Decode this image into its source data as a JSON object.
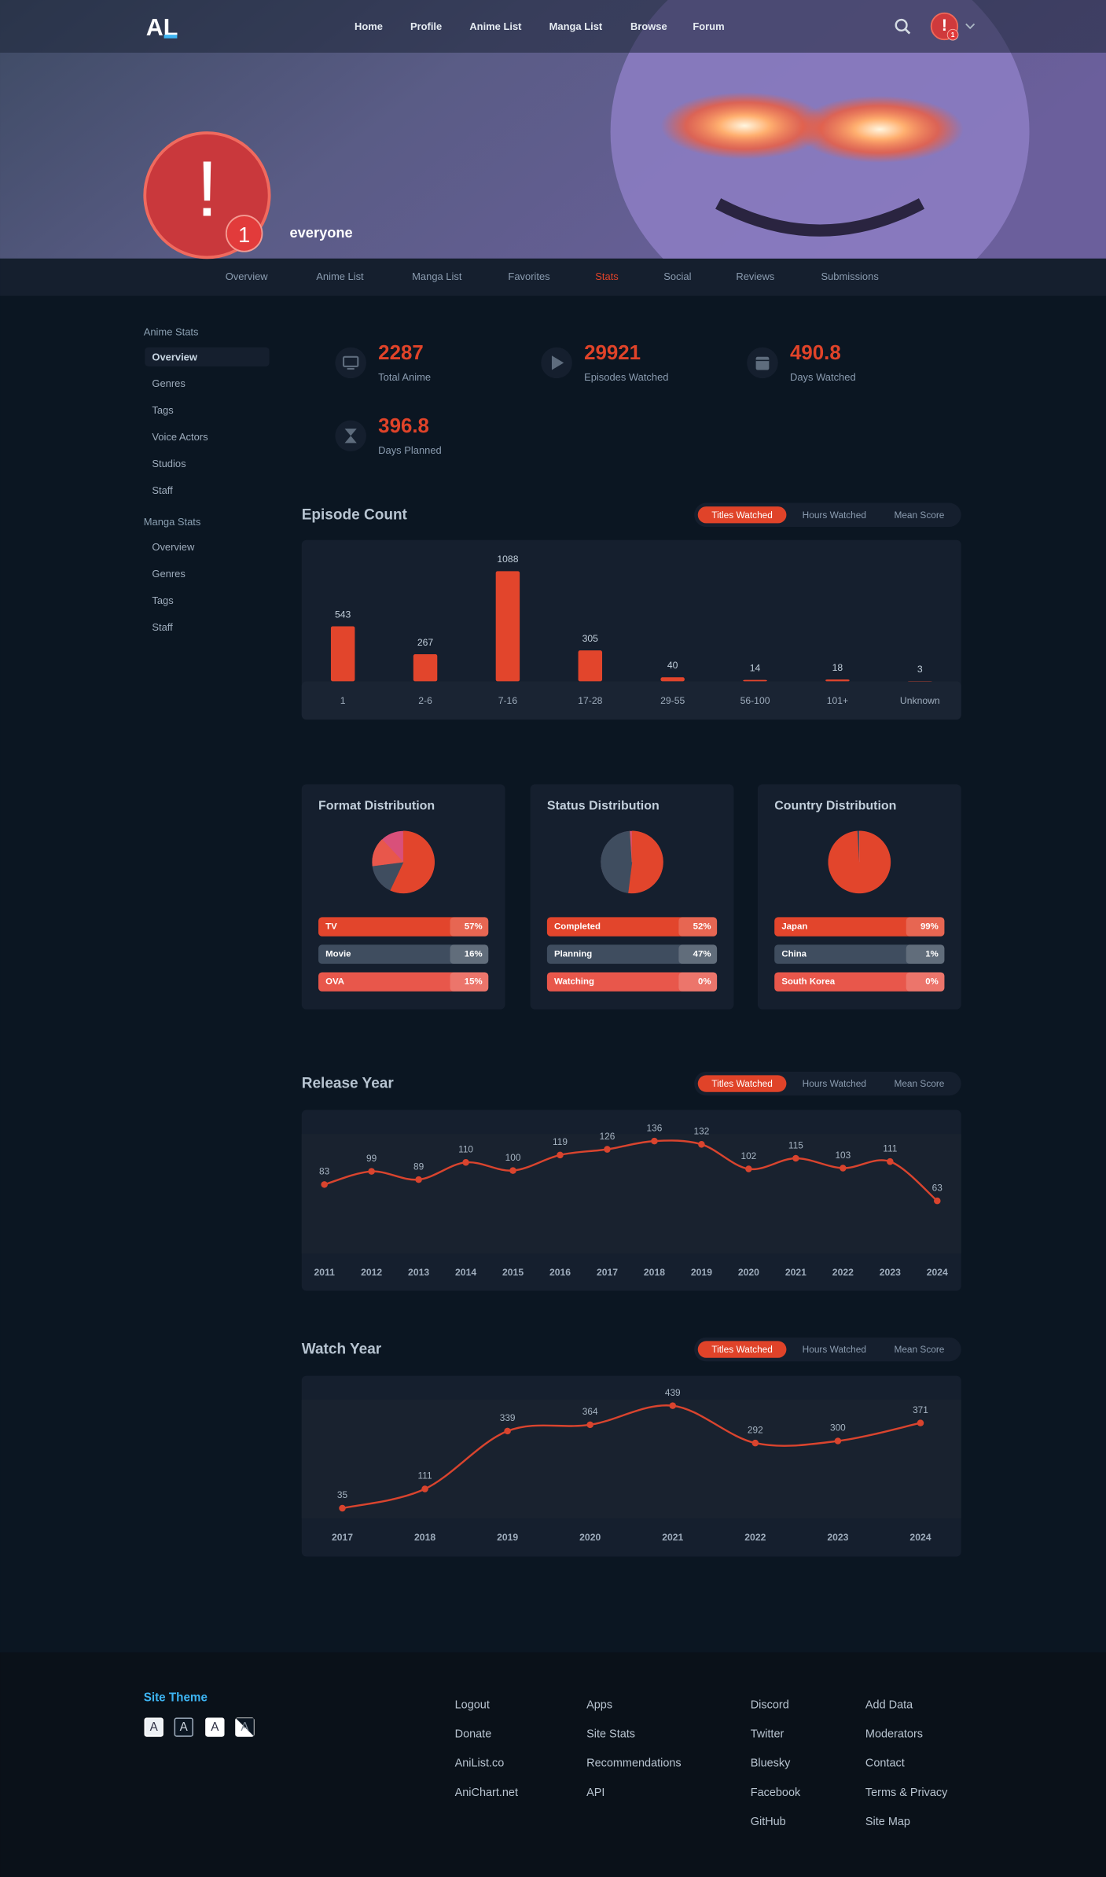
{
  "header": {
    "logo": "AL",
    "links": [
      "Home",
      "Profile",
      "Anime List",
      "Manga List",
      "Browse",
      "Forum"
    ],
    "avatar_text": "!",
    "notifications": 1
  },
  "profile": {
    "avatar_text": "!",
    "notifications": 1,
    "username": "everyone"
  },
  "tabs": [
    {
      "label": "Overview"
    },
    {
      "label": "Anime List"
    },
    {
      "label": "Manga List"
    },
    {
      "label": "Favorites"
    },
    {
      "label": "Stats",
      "active": true
    },
    {
      "label": "Social"
    },
    {
      "label": "Reviews"
    },
    {
      "label": "Submissions"
    }
  ],
  "sidebar": [
    {
      "title": "Anime Stats",
      "items": [
        {
          "label": "Overview",
          "active": true
        },
        {
          "label": "Genres"
        },
        {
          "label": "Tags"
        },
        {
          "label": "Voice Actors"
        },
        {
          "label": "Studios"
        },
        {
          "label": "Staff"
        }
      ]
    },
    {
      "title": "Manga Stats",
      "items": [
        {
          "label": "Overview"
        },
        {
          "label": "Genres"
        },
        {
          "label": "Tags"
        },
        {
          "label": "Staff"
        }
      ]
    }
  ],
  "stats": [
    {
      "value": 2287,
      "label": "Total Anime"
    },
    {
      "value": 29921,
      "label": "Episodes Watched"
    },
    {
      "value": 490.8,
      "label": "Days Watched"
    },
    {
      "value": 396.8,
      "label": "Days Planned"
    }
  ],
  "episode_count": {
    "type": "bar",
    "title": "Episode Count",
    "toggles": [
      {
        "label": "Titles Watched",
        "active": true
      },
      {
        "label": "Hours Watched"
      },
      {
        "label": "Mean Score"
      }
    ],
    "categories": [
      "1",
      "2-6",
      "7-16",
      "17-28",
      "29-55",
      "56-100",
      "101+",
      "Unknown"
    ],
    "values": [
      543,
      267,
      1088,
      305,
      40,
      14,
      18,
      3
    ],
    "color": "#e2452c"
  },
  "distributions": [
    {
      "type": "pie",
      "title": "Format Distribution",
      "categories": [
        "TV",
        "Movie",
        "OVA"
      ],
      "values": [
        57,
        16,
        15
      ],
      "value_labels": [
        "57%",
        "16%",
        "15%"
      ],
      "colors": [
        "#e2452c",
        "#3f4d5f",
        "#e8574b"
      ]
    },
    {
      "type": "pie",
      "title": "Status Distribution",
      "categories": [
        "Completed",
        "Planning",
        "Watching"
      ],
      "values": [
        52,
        47,
        0
      ],
      "value_labels": [
        "52%",
        "47%",
        "0%"
      ],
      "colors": [
        "#e2452c",
        "#3f4d5f",
        "#e8574b"
      ]
    },
    {
      "type": "pie",
      "title": "Country Distribution",
      "categories": [
        "Japan",
        "China",
        "South Korea"
      ],
      "values": [
        99,
        1,
        0
      ],
      "value_labels": [
        "99%",
        "1%",
        "0%"
      ],
      "colors": [
        "#e2452c",
        "#3f4d5f",
        "#e8574b"
      ]
    }
  ],
  "release_year": {
    "type": "line",
    "title": "Release Year",
    "toggles": [
      {
        "label": "Titles Watched",
        "active": true
      },
      {
        "label": "Hours Watched"
      },
      {
        "label": "Mean Score"
      }
    ],
    "x": [
      2011,
      2012,
      2013,
      2014,
      2015,
      2016,
      2017,
      2018,
      2019,
      2020,
      2021,
      2022,
      2023,
      2024
    ],
    "values": [
      83,
      99,
      89,
      110,
      100,
      119,
      126,
      136,
      132,
      102,
      115,
      103,
      111,
      63
    ],
    "color": "#d9442e"
  },
  "watch_year": {
    "type": "line",
    "title": "Watch Year",
    "toggles": [
      {
        "label": "Titles Watched",
        "active": true
      },
      {
        "label": "Hours Watched"
      },
      {
        "label": "Mean Score"
      }
    ],
    "x": [
      2017,
      2018,
      2019,
      2020,
      2021,
      2022,
      2023,
      2024
    ],
    "values": [
      35,
      111,
      339,
      364,
      439,
      292,
      300,
      371
    ],
    "color": "#d9442e"
  },
  "footer": {
    "theme_title": "Site Theme",
    "themes": [
      "A",
      "A",
      "A",
      "A"
    ],
    "columns": [
      [
        "Logout",
        "Donate",
        "AniList.co",
        "AniChart.net"
      ],
      [
        "Apps",
        "Site Stats",
        "Recommendations",
        "API"
      ],
      [
        "Discord",
        "Twitter",
        "Bluesky",
        "Facebook",
        "GitHub"
      ],
      [
        "Add Data",
        "Moderators",
        "Contact",
        "Terms & Privacy",
        "Site Map"
      ]
    ]
  }
}
